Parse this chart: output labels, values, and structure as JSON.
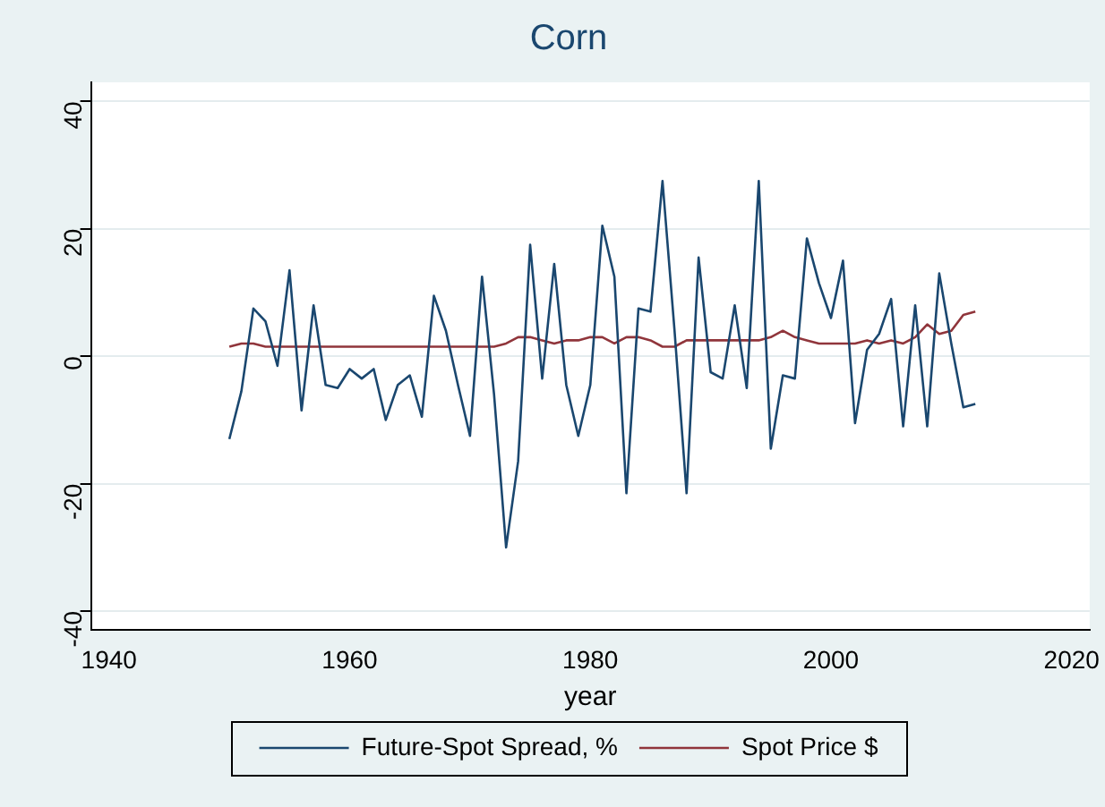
{
  "chart_data": {
    "type": "line",
    "title": "Corn",
    "xlabel": "year",
    "x": [
      1950,
      1951,
      1952,
      1953,
      1954,
      1955,
      1956,
      1957,
      1958,
      1959,
      1960,
      1961,
      1962,
      1963,
      1964,
      1965,
      1966,
      1967,
      1968,
      1969,
      1970,
      1971,
      1972,
      1973,
      1974,
      1975,
      1976,
      1977,
      1978,
      1979,
      1980,
      1981,
      1982,
      1983,
      1984,
      1985,
      1986,
      1987,
      1988,
      1989,
      1990,
      1991,
      1992,
      1993,
      1994,
      1995,
      1996,
      1997,
      1998,
      1999,
      2000,
      2001,
      2002,
      2003,
      2004,
      2005,
      2006,
      2007,
      2008,
      2009,
      2010,
      2011,
      2012
    ],
    "series": [
      {
        "name": "Future-Spot Spread, %",
        "color": "#1a476f",
        "values": [
          -13,
          -5.5,
          7.5,
          5.5,
          -1.5,
          13.5,
          -8.5,
          8,
          -4.5,
          -5,
          -2,
          -3.5,
          -2,
          -10,
          -4.5,
          -3,
          -9.5,
          9.5,
          4,
          -4.5,
          -12.5,
          12.5,
          -6,
          -30,
          -16.5,
          17.5,
          -3.5,
          14.5,
          -4.5,
          -12.5,
          -4.5,
          20.5,
          12.5,
          -21.5,
          7.5,
          7,
          27.5,
          4,
          -21.5,
          15.5,
          -2.5,
          -3.5,
          8,
          -5,
          27.5,
          -14.5,
          -3,
          -3.5,
          18.5,
          11.5,
          6,
          15,
          -10.5,
          1,
          3.5,
          9,
          -11,
          8,
          -11,
          13,
          2,
          -8,
          -7.5
        ]
      },
      {
        "name": "Spot Price $",
        "color": "#90353b",
        "values": [
          1.5,
          2,
          2,
          1.5,
          1.5,
          1.5,
          1.5,
          1.5,
          1.5,
          1.5,
          1.5,
          1.5,
          1.5,
          1.5,
          1.5,
          1.5,
          1.5,
          1.5,
          1.5,
          1.5,
          1.5,
          1.5,
          1.5,
          2,
          3,
          3,
          2.5,
          2,
          2.5,
          2.5,
          3,
          3,
          2,
          3,
          3,
          2.5,
          1.5,
          1.5,
          2.5,
          2.5,
          2.5,
          2.5,
          2.5,
          2.5,
          2.5,
          3,
          4,
          3,
          2.5,
          2,
          2,
          2,
          2,
          2.5,
          2,
          2.5,
          2,
          3,
          5,
          3.5,
          4,
          6.5,
          7
        ]
      }
    ],
    "xlim": [
      1938.5,
      2021.5
    ],
    "xticks": [
      1940,
      1960,
      1980,
      2000,
      2020
    ],
    "ylim": [
      -43,
      43
    ],
    "yticks": [
      -40,
      -20,
      0,
      20,
      40
    ],
    "grid": "y",
    "legend": "bottom",
    "marker": "none",
    "line_style": "solid"
  }
}
